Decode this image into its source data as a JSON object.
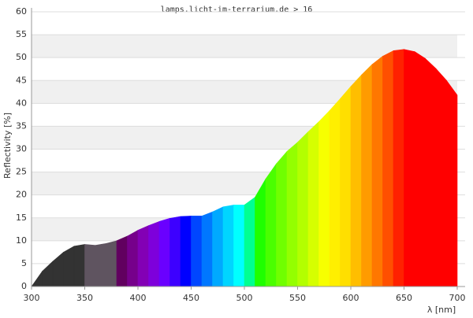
{
  "chart_data": {
    "type": "spectrum-area",
    "title": "lamps.licht-im-terrarium.de > 16",
    "x_label": "λ [nm]",
    "y_label": "Reflectivity [%]",
    "x": [
      300,
      310,
      320,
      330,
      340,
      350,
      360,
      370,
      380,
      390,
      400,
      410,
      420,
      430,
      440,
      450,
      460,
      470,
      480,
      490,
      500,
      510,
      520,
      530,
      540,
      550,
      560,
      570,
      580,
      590,
      600,
      610,
      620,
      630,
      640,
      650,
      660,
      670,
      680,
      690,
      700
    ],
    "series": [
      {
        "name": "Reflectivity",
        "values": [
          0,
          3.3,
          5.5,
          7.5,
          8.8,
          9.2,
          9.0,
          9.4,
          10,
          11,
          12.3,
          13.3,
          14.2,
          14.9,
          15.3,
          15.4,
          15.4,
          16.3,
          17.4,
          17.8,
          17.8,
          19.5,
          23.5,
          26.8,
          29.5,
          31.5,
          33.8,
          36,
          38.4,
          41,
          43.7,
          46.2,
          48.5,
          50.3,
          51.5,
          51.8,
          51.3,
          49.8,
          47.6,
          45,
          41.8
        ],
        "colors": [
          "#333333",
          "#333333",
          "#333333",
          "#333333",
          "#333333",
          "#5f5460",
          "#5f5460",
          "#5f5460",
          "#61005f",
          "#76008b",
          "#8300b5",
          "#7e00db",
          "#6a00ff",
          "#3d00ff",
          "#0000ff",
          "#0046ff",
          "#0077ff",
          "#00a9ff",
          "#00d5ff",
          "#00ffff",
          "#00ff92",
          "#1fff00",
          "#4aff00",
          "#70ff00",
          "#94ff00",
          "#b3ff00",
          "#d6ff00",
          "#f7ff00",
          "#ffef00",
          "#ffdf00",
          "#ffbe00",
          "#ff9b00",
          "#ff7700",
          "#ff4f00",
          "#ff2100",
          "#ff0000",
          "#ff0000",
          "#ff0000",
          "#ff0000",
          "#ff0000",
          "#ff0000"
        ]
      }
    ],
    "xlim": [
      300,
      700
    ],
    "xticks": [
      300,
      350,
      400,
      450,
      500,
      550,
      600,
      650,
      700
    ],
    "ylim": [
      0,
      60
    ],
    "yticks": [
      0,
      5,
      10,
      15,
      20,
      25,
      30,
      35,
      40,
      45,
      50,
      55,
      60
    ],
    "grid": true,
    "band_color": "#f0f0f0"
  }
}
